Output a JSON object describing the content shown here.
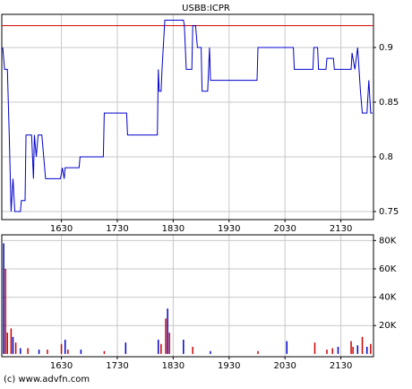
{
  "chart_data": [
    {
      "type": "line",
      "title": "USBB:ICPR",
      "color": "#0000cc",
      "x": [
        927,
        929,
        932,
        934,
        936,
        938,
        940,
        946,
        947,
        951,
        952,
        958,
        960,
        961,
        963,
        965,
        969,
        971,
        973,
        989,
        991,
        993,
        994,
        1009,
        1010,
        1035,
        1036,
        1060,
        1061,
        1093,
        1094,
        1095,
        1097,
        1098,
        1101,
        1121,
        1122,
        1124,
        1130,
        1131,
        1134,
        1136,
        1140,
        1141,
        1147,
        1149,
        1150,
        1200,
        1201,
        1239,
        1240,
        1260,
        1261,
        1265,
        1266,
        1274,
        1275,
        1282,
        1283,
        1301,
        1302,
        1305,
        1308,
        1311,
        1313,
        1318,
        1320,
        1322,
        1324
      ],
      "values": [
        0.9,
        0.88,
        0.88,
        0.82,
        0.75,
        0.78,
        0.75,
        0.75,
        0.76,
        0.76,
        0.82,
        0.82,
        0.78,
        0.82,
        0.8,
        0.82,
        0.82,
        0.8,
        0.78,
        0.78,
        0.79,
        0.78,
        0.79,
        0.79,
        0.8,
        0.8,
        0.84,
        0.84,
        0.82,
        0.82,
        0.88,
        0.86,
        0.86,
        0.88,
        0.925,
        0.925,
        0.92,
        0.88,
        0.88,
        0.92,
        0.92,
        0.9,
        0.9,
        0.86,
        0.86,
        0.9,
        0.87,
        0.87,
        0.9,
        0.9,
        0.88,
        0.88,
        0.9,
        0.9,
        0.88,
        0.88,
        0.89,
        0.89,
        0.88,
        0.88,
        0.895,
        0.88,
        0.9,
        0.86,
        0.84,
        0.84,
        0.87,
        0.84,
        0.84
      ],
      "reference_line": {
        "value": 0.92,
        "color": "#cc0000"
      },
      "xlim": [
        926,
        1325
      ],
      "ylim": [
        0.7426,
        0.9303
      ],
      "xticks": [
        {
          "value": 990,
          "label": "1630"
        },
        {
          "value": 1050,
          "label": "1730"
        },
        {
          "value": 1110,
          "label": "1830"
        },
        {
          "value": 1170,
          "label": "1930"
        },
        {
          "value": 1230,
          "label": "2030"
        },
        {
          "value": 1290,
          "label": "2130"
        }
      ],
      "yticks": [
        0.75,
        0.8,
        0.85,
        0.9
      ],
      "grid": true
    },
    {
      "type": "bar",
      "series": [
        {
          "color": "#0000cc",
          "x": [
            928,
            938,
            946,
            966,
            994,
            1011,
            1059,
            1094,
            1104,
            1121,
            1150,
            1232,
            1287,
            1308,
            1318
          ],
          "values": [
            78000,
            12000,
            4000,
            3000,
            10000,
            3000,
            8000,
            10000,
            32000,
            10000,
            2000,
            9000,
            5000,
            6000,
            5000
          ]
        },
        {
          "color": "#cc0000",
          "x": [
            930,
            932,
            936,
            941,
            954,
            975,
            990,
            997,
            1036,
            1097,
            1102,
            1106,
            1131,
            1201,
            1262,
            1275,
            1281,
            1301,
            1303,
            1313,
            1322
          ],
          "values": [
            60000,
            15000,
            18000,
            8000,
            4000,
            3000,
            7000,
            3000,
            2000,
            7000,
            25000,
            15000,
            5000,
            2000,
            8000,
            3000,
            4000,
            9000,
            5000,
            12000,
            7000
          ]
        }
      ],
      "xlim": [
        926,
        1325
      ],
      "ylim": [
        -2000,
        84000
      ],
      "xticks": [
        {
          "value": 990,
          "label": "1630"
        },
        {
          "value": 1050,
          "label": "1730"
        },
        {
          "value": 1110,
          "label": "1830"
        },
        {
          "value": 1170,
          "label": "1930"
        },
        {
          "value": 1230,
          "label": "2030"
        },
        {
          "value": 1290,
          "label": "2130"
        }
      ],
      "yticks": [
        {
          "value": 20000,
          "label": "20K"
        },
        {
          "value": 40000,
          "label": "40K"
        },
        {
          "value": 60000,
          "label": "60K"
        },
        {
          "value": 80000,
          "label": "80K"
        }
      ],
      "grid": true
    }
  ],
  "footer": "(c) www.advfn.com"
}
